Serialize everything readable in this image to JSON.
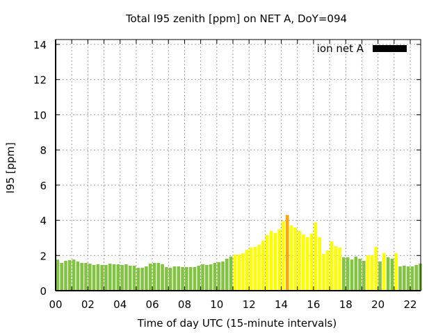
{
  "chart_data": {
    "type": "bar",
    "title": "Total I95 zenith [ppm] on NET A, DoY=094",
    "xlabel": "Time of day UTC (15-minute intervals)",
    "ylabel": "I95 [ppm]",
    "ylim": [
      0,
      14.2
    ],
    "xlim": [
      0,
      22.75
    ],
    "yticks": [
      "0",
      "2",
      "4",
      "6",
      "8",
      "10",
      "12",
      "14"
    ],
    "xticks": [
      "00",
      "02",
      "04",
      "06",
      "08",
      "10",
      "12",
      "14",
      "16",
      "18",
      "20",
      "22"
    ],
    "grid": true,
    "legend": {
      "position": "top-right",
      "entries": [
        {
          "label": "ion net A",
          "color": "#000000"
        }
      ]
    },
    "colors": {
      "low": "#82c341",
      "moderate": "#ffff00",
      "high": "#ffa500"
    },
    "interval_hours": 0.25,
    "series": [
      {
        "name": "ion net A",
        "values": [
          1.77,
          1.58,
          1.7,
          1.74,
          1.77,
          1.66,
          1.58,
          1.58,
          1.54,
          1.46,
          1.5,
          1.46,
          1.46,
          1.54,
          1.5,
          1.5,
          1.46,
          1.5,
          1.42,
          1.42,
          1.3,
          1.3,
          1.38,
          1.54,
          1.58,
          1.58,
          1.5,
          1.34,
          1.3,
          1.38,
          1.38,
          1.34,
          1.34,
          1.34,
          1.34,
          1.42,
          1.5,
          1.46,
          1.5,
          1.58,
          1.62,
          1.66,
          1.82,
          1.94,
          2.05,
          2.05,
          2.13,
          2.33,
          2.45,
          2.49,
          2.61,
          2.85,
          3.16,
          3.4,
          3.28,
          3.48,
          3.95,
          4.3,
          3.71,
          3.59,
          3.4,
          3.2,
          3.04,
          3.24,
          3.87,
          3.04,
          2.09,
          2.29,
          2.8,
          2.53,
          2.45,
          1.9,
          1.9,
          1.77,
          1.94,
          1.82,
          1.7,
          2.01,
          2.01,
          2.49,
          1.66,
          2.13,
          1.9,
          1.82,
          2.13,
          1.38,
          1.42,
          1.38,
          1.38,
          1.46,
          1.54
        ],
        "levels": [
          "low",
          "low",
          "low",
          "low",
          "low",
          "low",
          "low",
          "low",
          "low",
          "low",
          "low",
          "low",
          "low",
          "low",
          "low",
          "low",
          "low",
          "low",
          "low",
          "low",
          "low",
          "low",
          "low",
          "low",
          "low",
          "low",
          "low",
          "low",
          "low",
          "low",
          "low",
          "low",
          "low",
          "low",
          "low",
          "low",
          "low",
          "low",
          "low",
          "low",
          "low",
          "low",
          "low",
          "low",
          "moderate",
          "moderate",
          "moderate",
          "moderate",
          "moderate",
          "moderate",
          "moderate",
          "moderate",
          "moderate",
          "moderate",
          "moderate",
          "moderate",
          "moderate",
          "high",
          "moderate",
          "moderate",
          "moderate",
          "moderate",
          "moderate",
          "moderate",
          "moderate",
          "moderate",
          "moderate",
          "moderate",
          "moderate",
          "moderate",
          "moderate",
          "low",
          "low",
          "low",
          "low",
          "low",
          "low",
          "moderate",
          "moderate",
          "moderate",
          "low",
          "moderate",
          "low",
          "low",
          "moderate",
          "low",
          "low",
          "low",
          "low",
          "low",
          "low"
        ]
      }
    ]
  }
}
